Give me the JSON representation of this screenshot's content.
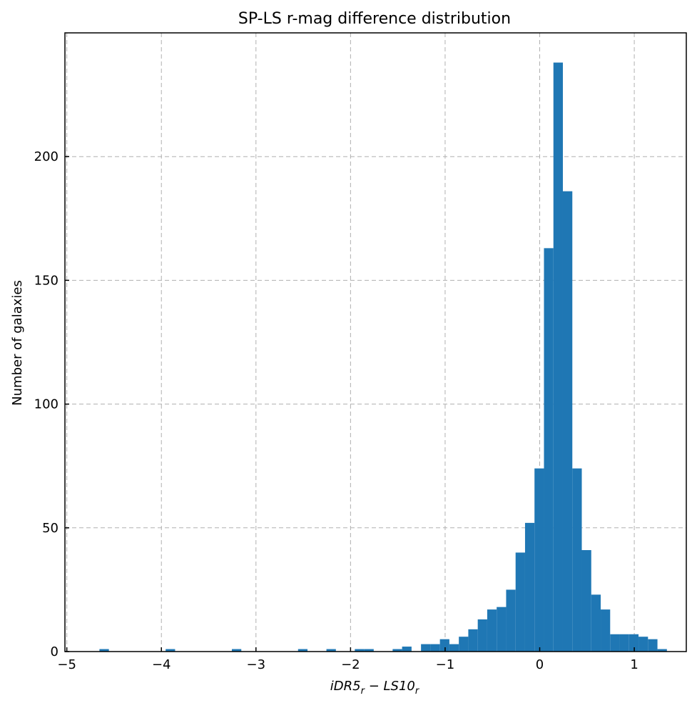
{
  "chart_data": {
    "type": "bar",
    "title": "SP-LS r-mag difference distribution",
    "xlabel": {
      "base": "iDR5",
      "sub1": "r",
      "op": " − ",
      "base2": "LS10",
      "sub2": "r"
    },
    "ylabel": "Number of galaxies",
    "xlim": [
      -5.02,
      1.55
    ],
    "ylim": [
      0,
      250
    ],
    "grid": true,
    "bar_color": "#1f77b4",
    "xticks": [
      -5,
      -4,
      -3,
      -2,
      -1,
      0,
      1
    ],
    "xtick_labels": [
      "−5",
      "−4",
      "−3",
      "−2",
      "−1",
      "0",
      "1"
    ],
    "yticks": [
      0,
      50,
      100,
      150,
      200
    ],
    "ytick_labels": [
      "0",
      "50",
      "100",
      "150",
      "200"
    ],
    "bins": {
      "start": -4.955,
      "width": 0.1,
      "counts": [
        0,
        0,
        0,
        1,
        0,
        0,
        0,
        0,
        0,
        0,
        1,
        0,
        0,
        0,
        0,
        0,
        0,
        1,
        0,
        0,
        0,
        0,
        0,
        0,
        1,
        0,
        0,
        1,
        0,
        0,
        1,
        1,
        0,
        0,
        1,
        2,
        0,
        3,
        3,
        5,
        3,
        6,
        9,
        13,
        17,
        18,
        25,
        40,
        52,
        74,
        163,
        238,
        186,
        74,
        41,
        23,
        17,
        7,
        7,
        7,
        6,
        5,
        1
      ]
    }
  }
}
